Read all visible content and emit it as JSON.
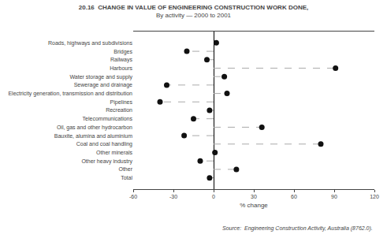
{
  "chart_data": {
    "type": "dot",
    "title": "20.16  CHANGE IN VALUE OF ENGINEERING CONSTRUCTION WORK DONE,",
    "subtitle": "By activity — 2000 to 2001",
    "categories": [
      "Roads, highways and subdivisions",
      "Bridges",
      "Railways",
      "Harbours",
      "Water storage and supply",
      "Sewerage and drainage",
      "Electricity generation, transmission and distribution",
      "Pipelines",
      "Recreation",
      "Telecommunications",
      "Oil, gas and other hydrocarbon",
      "Bauxite, alumina and aluminium",
      "Coal and coal handling",
      "Other minerals",
      "Other heavy industry",
      "Other",
      "Total"
    ],
    "values": [
      2,
      -20,
      -5,
      91,
      8,
      -35,
      10,
      -40,
      -3,
      -15,
      36,
      -22,
      80,
      1,
      -10,
      17,
      -3
    ],
    "orientation": "horizontal",
    "xlabel": "% change",
    "xlim": [
      -60,
      120
    ],
    "xticks": [
      -60,
      -30,
      0,
      30,
      60,
      90,
      120
    ],
    "annotations": [
      "Source:  Engineering Construction Activity, Australia (8762.0)."
    ],
    "color": "#111111",
    "line_style": "dashed",
    "grid": false
  }
}
